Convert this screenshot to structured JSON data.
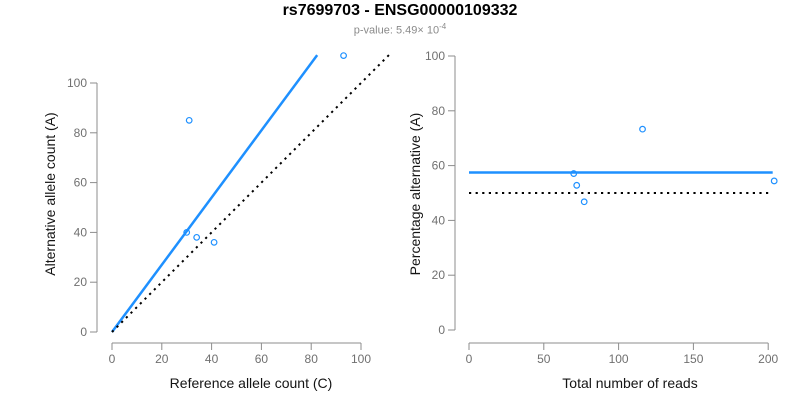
{
  "header": {
    "title": "rs7699703 - ENSG00000109332",
    "p_value": {
      "prefix": "p-value: 5.49× 10",
      "exponent": "-4"
    }
  },
  "colors": {
    "accent_blue": "#1E90FF",
    "line_black": "#000000",
    "axis_gray": "#8C8C8C",
    "tick_label_gray": "#707070",
    "axis_title_dark": "#141414",
    "subtitle_gray": "#8A8A8A"
  },
  "chart_data": [
    {
      "type": "scatter",
      "panel": "left",
      "title": "",
      "xlabel": "Reference allele count (C)",
      "ylabel": "Alternative allele count (A)",
      "xlim": [
        0,
        100
      ],
      "ylim": [
        0,
        100
      ],
      "xticks": [
        0,
        20,
        40,
        60,
        80,
        100
      ],
      "yticks": [
        0,
        20,
        40,
        60,
        80,
        100
      ],
      "grid": false,
      "legend": null,
      "points": [
        [
          30,
          40
        ],
        [
          34,
          38
        ],
        [
          41,
          36
        ],
        [
          31,
          85
        ],
        [
          93,
          111
        ]
      ],
      "lines": [
        {
          "name": "fit-line",
          "style": "solid",
          "color_key": "accent_blue",
          "from": [
            0,
            0
          ],
          "to": [
            82.4,
            111.2
          ]
        },
        {
          "name": "identity-line",
          "style": "dotted",
          "color_key": "line_black",
          "from": [
            0,
            0
          ],
          "to": [
            111.4,
            111.4
          ]
        }
      ]
    },
    {
      "type": "scatter",
      "panel": "right",
      "title": "",
      "xlabel": "Total number of reads",
      "ylabel": "Percentage alternative (A)",
      "xlim": [
        0,
        200
      ],
      "ylim": [
        0,
        100
      ],
      "xticks": [
        0,
        50,
        100,
        150,
        200
      ],
      "yticks": [
        0,
        20,
        40,
        60,
        80,
        100
      ],
      "grid": false,
      "legend": null,
      "points": [
        [
          70,
          57.1
        ],
        [
          72,
          52.8
        ],
        [
          77,
          46.8
        ],
        [
          116,
          73.3
        ],
        [
          204,
          54.4
        ]
      ],
      "lines": [
        {
          "name": "mean-percentage-line",
          "style": "solid",
          "color_key": "accent_blue",
          "from": [
            0,
            57.5
          ],
          "to": [
            203,
            57.5
          ]
        },
        {
          "name": "null-50-percent-line",
          "style": "dotted",
          "color_key": "line_black",
          "from": [
            0,
            50
          ],
          "to": [
            200,
            50
          ]
        }
      ]
    }
  ]
}
